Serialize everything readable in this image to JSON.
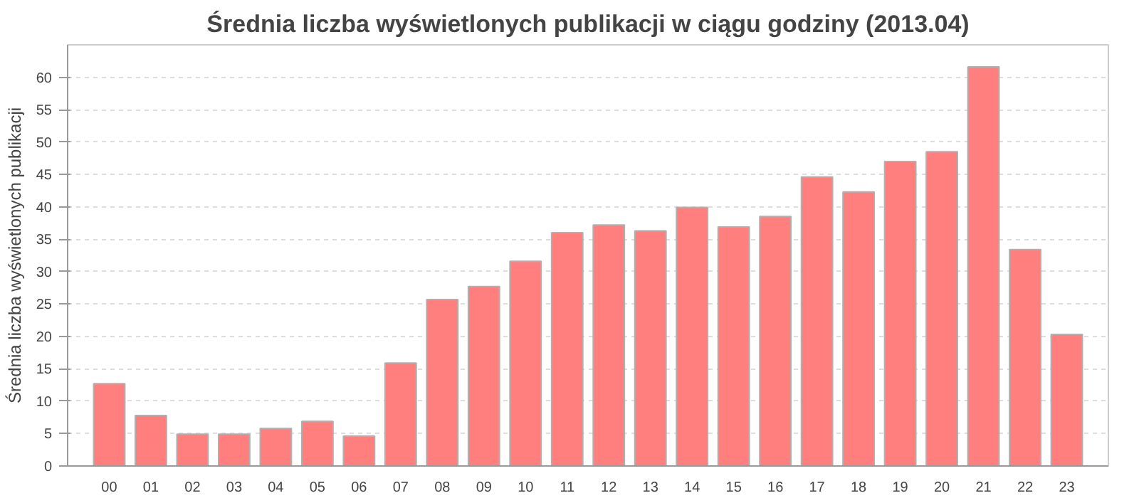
{
  "chart_data": {
    "type": "bar",
    "title": "Średnia liczba wyświetlonych publikacji w ciągu godziny (2013.04)",
    "ylabel": "Średnia liczba wyświetlonych publikacji",
    "categories": [
      "00",
      "01",
      "02",
      "03",
      "04",
      "05",
      "06",
      "07",
      "08",
      "09",
      "10",
      "11",
      "12",
      "13",
      "14",
      "15",
      "16",
      "17",
      "18",
      "19",
      "20",
      "21",
      "22",
      "23"
    ],
    "values": [
      12.7,
      7.8,
      4.9,
      4.9,
      5.8,
      6.9,
      4.6,
      15.9,
      25.7,
      27.7,
      31.6,
      36.0,
      37.2,
      36.3,
      39.9,
      36.9,
      38.5,
      44.6,
      42.3,
      47.0,
      48.5,
      61.6,
      33.4,
      20.3
    ],
    "color": "#ff7f7f",
    "ylim": [
      0,
      65
    ],
    "yticks": [
      0,
      5,
      10,
      15,
      20,
      25,
      30,
      35,
      40,
      45,
      50,
      55,
      60
    ],
    "grid": "y"
  }
}
